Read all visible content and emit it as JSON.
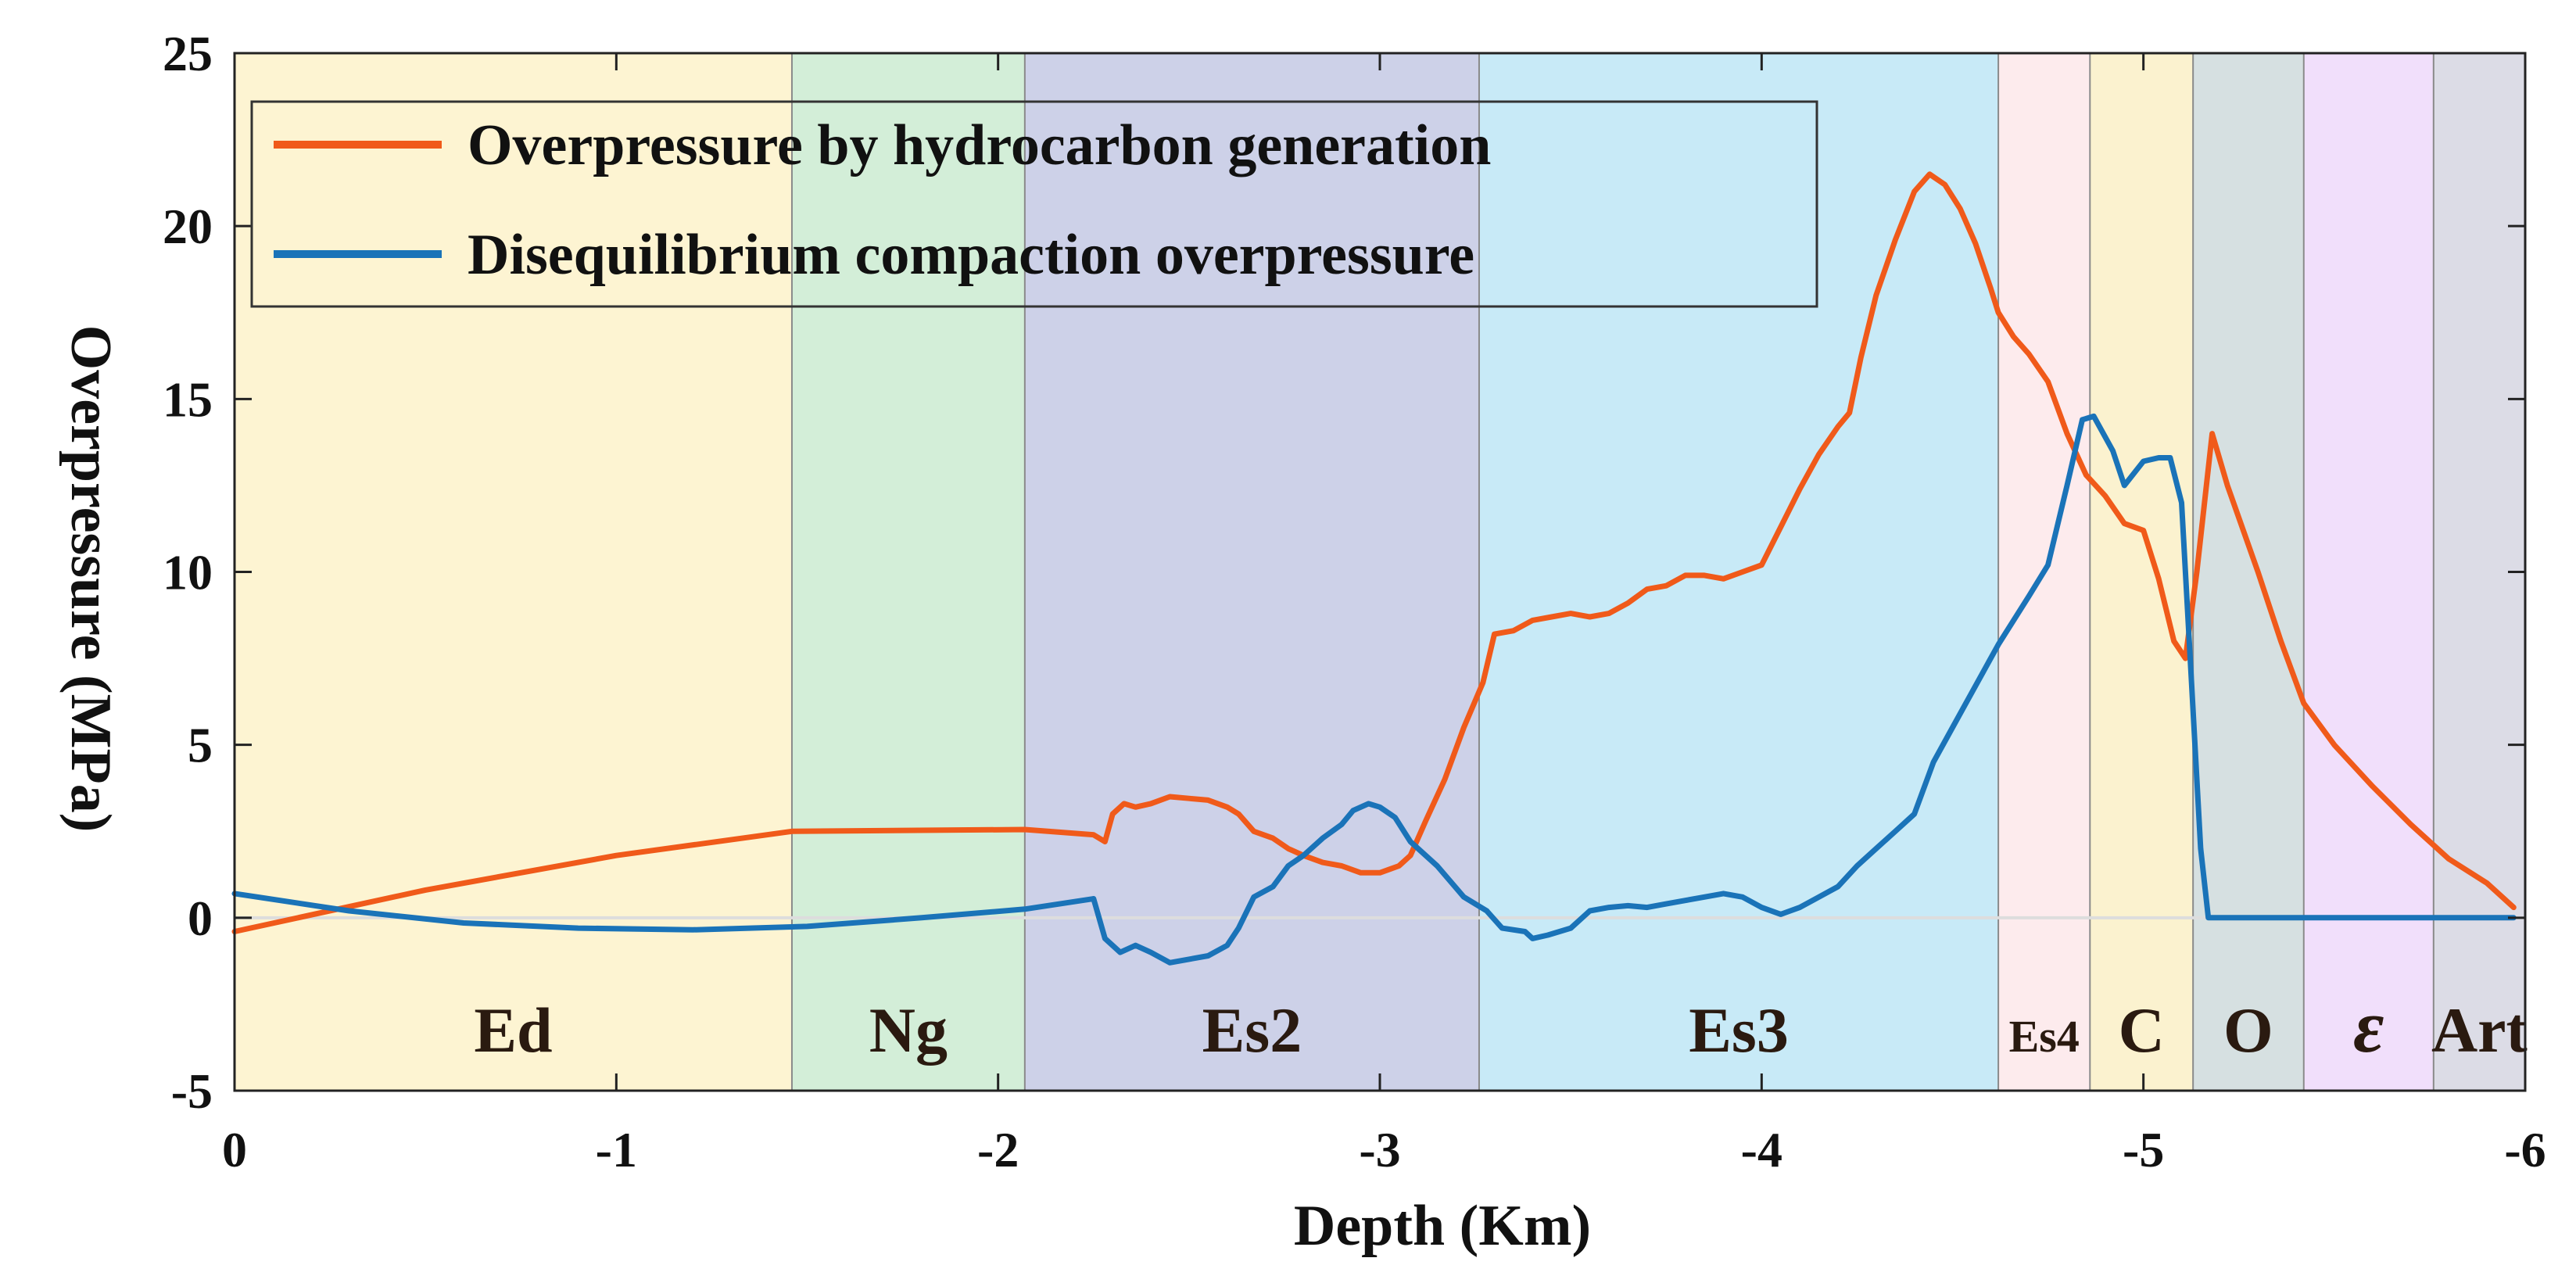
{
  "chart_data": {
    "type": "line",
    "xlabel": "Depth (Km)",
    "ylabel": "Overpressure (MPa)",
    "xlim": [
      0,
      -6
    ],
    "ylim": [
      -5,
      25
    ],
    "xticks": [
      0,
      -1,
      -2,
      -3,
      -4,
      -5,
      -6
    ],
    "xtick_labels": [
      "0",
      "-1",
      "-2",
      "-3",
      "-4",
      "-5",
      "-6"
    ],
    "yticks": [
      -5,
      0,
      5,
      10,
      15,
      20,
      25
    ],
    "ytick_labels": [
      "-5",
      "0",
      "5",
      "10",
      "15",
      "20",
      "25"
    ],
    "legend_position": "top-left",
    "zones": [
      {
        "label": "Ed",
        "from": 0,
        "to": -1.46,
        "color": "#fdf4d2"
      },
      {
        "label": "Ng",
        "from": -1.46,
        "to": -2.07,
        "color": "#d3eed8"
      },
      {
        "label": "Es2",
        "from": -2.07,
        "to": -3.26,
        "color": "#cdd1e8"
      },
      {
        "label": "Es3",
        "from": -3.26,
        "to": -4.62,
        "color": "#c8eaf7"
      },
      {
        "label": "Es4",
        "from": -4.62,
        "to": -4.86,
        "color": "#fdebed"
      },
      {
        "label": "C",
        "from": -4.86,
        "to": -5.13,
        "color": "#fbf2cf"
      },
      {
        "label": "O",
        "from": -5.13,
        "to": -5.42,
        "color": "#d6e0e1"
      },
      {
        "label": "ε",
        "from": -5.42,
        "to": -5.76,
        "color": "#f1dffb"
      },
      {
        "label": "Art",
        "from": -5.76,
        "to": -6.0,
        "color": "#dcdce6"
      }
    ],
    "series": [
      {
        "name": "Overpressure by hydrocarbon generation",
        "color": "#f05a1a",
        "points": [
          [
            0,
            -0.4
          ],
          [
            -0.5,
            0.8
          ],
          [
            -1.0,
            1.8
          ],
          [
            -1.46,
            2.5
          ],
          [
            -2.07,
            2.55
          ],
          [
            -2.25,
            2.4
          ],
          [
            -2.28,
            2.2
          ],
          [
            -2.3,
            3.0
          ],
          [
            -2.33,
            3.3
          ],
          [
            -2.36,
            3.2
          ],
          [
            -2.4,
            3.3
          ],
          [
            -2.45,
            3.5
          ],
          [
            -2.5,
            3.45
          ],
          [
            -2.55,
            3.4
          ],
          [
            -2.6,
            3.2
          ],
          [
            -2.63,
            3.0
          ],
          [
            -2.67,
            2.5
          ],
          [
            -2.72,
            2.3
          ],
          [
            -2.76,
            2.0
          ],
          [
            -2.8,
            1.8
          ],
          [
            -2.85,
            1.6
          ],
          [
            -2.9,
            1.5
          ],
          [
            -2.95,
            1.3
          ],
          [
            -3.0,
            1.3
          ],
          [
            -3.05,
            1.5
          ],
          [
            -3.08,
            1.8
          ],
          [
            -3.12,
            2.8
          ],
          [
            -3.17,
            4.0
          ],
          [
            -3.22,
            5.5
          ],
          [
            -3.27,
            6.8
          ],
          [
            -3.3,
            8.2
          ],
          [
            -3.35,
            8.3
          ],
          [
            -3.4,
            8.6
          ],
          [
            -3.45,
            8.7
          ],
          [
            -3.5,
            8.8
          ],
          [
            -3.55,
            8.7
          ],
          [
            -3.6,
            8.8
          ],
          [
            -3.65,
            9.1
          ],
          [
            -3.7,
            9.5
          ],
          [
            -3.75,
            9.6
          ],
          [
            -3.8,
            9.9
          ],
          [
            -3.85,
            9.9
          ],
          [
            -3.9,
            9.8
          ],
          [
            -3.95,
            10.0
          ],
          [
            -4.0,
            10.2
          ],
          [
            -4.05,
            11.3
          ],
          [
            -4.1,
            12.4
          ],
          [
            -4.15,
            13.4
          ],
          [
            -4.2,
            14.2
          ],
          [
            -4.23,
            14.6
          ],
          [
            -4.26,
            16.2
          ],
          [
            -4.3,
            18.0
          ],
          [
            -4.35,
            19.6
          ],
          [
            -4.4,
            21.0
          ],
          [
            -4.44,
            21.5
          ],
          [
            -4.48,
            21.2
          ],
          [
            -4.52,
            20.5
          ],
          [
            -4.56,
            19.5
          ],
          [
            -4.6,
            18.2
          ],
          [
            -4.62,
            17.5
          ],
          [
            -4.66,
            16.8
          ],
          [
            -4.7,
            16.3
          ],
          [
            -4.75,
            15.5
          ],
          [
            -4.8,
            14.0
          ],
          [
            -4.85,
            12.8
          ],
          [
            -4.9,
            12.2
          ],
          [
            -4.95,
            11.4
          ],
          [
            -5.0,
            11.2
          ],
          [
            -5.04,
            9.8
          ],
          [
            -5.08,
            8.0
          ],
          [
            -5.11,
            7.5
          ],
          [
            -5.14,
            10.0
          ],
          [
            -5.18,
            14.0
          ],
          [
            -5.22,
            12.5
          ],
          [
            -5.3,
            10.0
          ],
          [
            -5.36,
            8.0
          ],
          [
            -5.42,
            6.2
          ],
          [
            -5.5,
            5.0
          ],
          [
            -5.6,
            3.8
          ],
          [
            -5.7,
            2.7
          ],
          [
            -5.8,
            1.7
          ],
          [
            -5.9,
            1.0
          ],
          [
            -5.97,
            0.3
          ]
        ]
      },
      {
        "name": "Disequilibrium compaction overpressure",
        "color": "#1a73b8",
        "points": [
          [
            0,
            0.7
          ],
          [
            -0.3,
            0.2
          ],
          [
            -0.6,
            -0.15
          ],
          [
            -0.9,
            -0.3
          ],
          [
            -1.2,
            -0.35
          ],
          [
            -1.5,
            -0.25
          ],
          [
            -1.8,
            0.0
          ],
          [
            -2.07,
            0.25
          ],
          [
            -2.25,
            0.55
          ],
          [
            -2.28,
            -0.6
          ],
          [
            -2.32,
            -1.0
          ],
          [
            -2.36,
            -0.8
          ],
          [
            -2.4,
            -1.0
          ],
          [
            -2.45,
            -1.3
          ],
          [
            -2.5,
            -1.2
          ],
          [
            -2.55,
            -1.1
          ],
          [
            -2.6,
            -0.8
          ],
          [
            -2.63,
            -0.3
          ],
          [
            -2.67,
            0.6
          ],
          [
            -2.72,
            0.9
          ],
          [
            -2.76,
            1.5
          ],
          [
            -2.8,
            1.8
          ],
          [
            -2.85,
            2.3
          ],
          [
            -2.9,
            2.7
          ],
          [
            -2.93,
            3.1
          ],
          [
            -2.97,
            3.3
          ],
          [
            -3.0,
            3.2
          ],
          [
            -3.04,
            2.9
          ],
          [
            -3.08,
            2.2
          ],
          [
            -3.15,
            1.5
          ],
          [
            -3.22,
            0.6
          ],
          [
            -3.28,
            0.2
          ],
          [
            -3.32,
            -0.3
          ],
          [
            -3.38,
            -0.4
          ],
          [
            -3.4,
            -0.6
          ],
          [
            -3.44,
            -0.5
          ],
          [
            -3.5,
            -0.3
          ],
          [
            -3.55,
            0.2
          ],
          [
            -3.6,
            0.3
          ],
          [
            -3.65,
            0.35
          ],
          [
            -3.7,
            0.3
          ],
          [
            -3.75,
            0.4
          ],
          [
            -3.8,
            0.5
          ],
          [
            -3.85,
            0.6
          ],
          [
            -3.9,
            0.7
          ],
          [
            -3.95,
            0.6
          ],
          [
            -4.0,
            0.3
          ],
          [
            -4.05,
            0.1
          ],
          [
            -4.1,
            0.3
          ],
          [
            -4.15,
            0.6
          ],
          [
            -4.2,
            0.9
          ],
          [
            -4.25,
            1.5
          ],
          [
            -4.3,
            2.0
          ],
          [
            -4.35,
            2.5
          ],
          [
            -4.4,
            3.0
          ],
          [
            -4.45,
            4.5
          ],
          [
            -4.5,
            5.5
          ],
          [
            -4.55,
            6.5
          ],
          [
            -4.62,
            7.9
          ],
          [
            -4.7,
            9.3
          ],
          [
            -4.75,
            10.2
          ],
          [
            -4.8,
            12.5
          ],
          [
            -4.84,
            14.4
          ],
          [
            -4.87,
            14.5
          ],
          [
            -4.92,
            13.5
          ],
          [
            -4.95,
            12.5
          ],
          [
            -5.0,
            13.2
          ],
          [
            -5.04,
            13.3
          ],
          [
            -5.07,
            13.3
          ],
          [
            -5.1,
            12.0
          ],
          [
            -5.12,
            8.0
          ],
          [
            -5.15,
            2.0
          ],
          [
            -5.17,
            0.0
          ],
          [
            -5.4,
            0.0
          ],
          [
            -5.7,
            0.0
          ],
          [
            -5.97,
            0.0
          ]
        ]
      }
    ]
  }
}
